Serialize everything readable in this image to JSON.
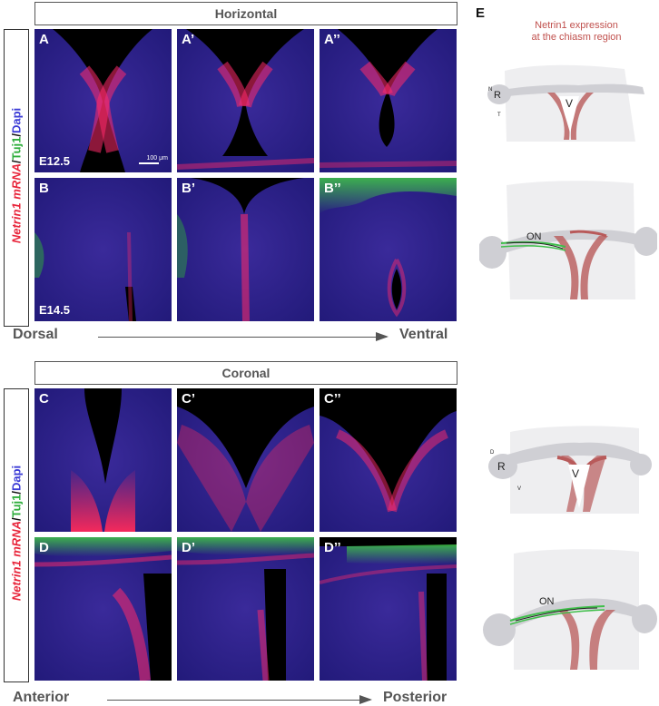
{
  "colors": {
    "netrin": "#e8243a",
    "tuj1": "#2fae3c",
    "dapi": "#3b3bd6",
    "schematic_netrin": "#c0504d"
  },
  "top_section": {
    "header": "Horizontal",
    "side_label": {
      "part1": "Netrin1 mRNA",
      "sep1": "/",
      "part2": "Tuj1",
      "sep2": "/",
      "part3": "Dapi"
    }
  },
  "bottom_section": {
    "header": "Coronal",
    "side_label": {
      "part1": "Netrin1 mRNA",
      "sep1": "/",
      "part2": "Tuj1",
      "sep2": "/",
      "part3": "Dapi"
    }
  },
  "panels": {
    "A": "A",
    "A1": "A’",
    "A2": "A’’",
    "B": "B",
    "B1": "B’",
    "B2": "B’’",
    "C": "C",
    "C1": "C’",
    "C2": "C’’",
    "D": "D",
    "D1": "D’",
    "D2": "D’’"
  },
  "stages": {
    "row_a": "E12.5",
    "row_b": "E14.5"
  },
  "scale_bar": "100 μm",
  "axis_top": {
    "left": "Dorsal",
    "right": "Ventral"
  },
  "axis_bottom": {
    "left": "Anterior",
    "right": "Posterior"
  },
  "schematic": {
    "label": "E",
    "title_line1": "Netrin1 expression",
    "title_line2": "at the chiasm region",
    "s1": {
      "r": "R",
      "v": "V",
      "n": "N",
      "t": "T"
    },
    "s2": {
      "on": "ON"
    },
    "s3": {
      "r": "R",
      "v": "V",
      "d": "D",
      "vent": "V"
    },
    "s4": {
      "on": "ON"
    }
  }
}
